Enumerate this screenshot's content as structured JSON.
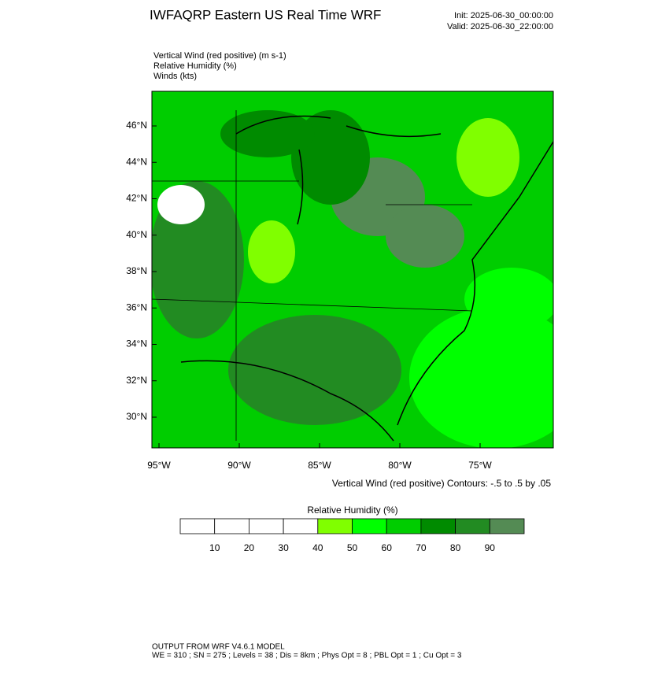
{
  "header": {
    "title": "IWFAQRP Eastern US Real Time WRF",
    "init": "Init: 2025-06-30_00:00:00",
    "valid": "Valid: 2025-06-30_22:00:00"
  },
  "fields": [
    "Vertical Wind (red positive)   (m s-1)",
    "Relative Humidity   (%)",
    "Winds   (kts)"
  ],
  "map": {
    "lat_labels": [
      "46°N",
      "44°N",
      "42°N",
      "40°N",
      "38°N",
      "36°N",
      "34°N",
      "32°N",
      "30°N"
    ],
    "lon_labels": [
      "95°W",
      "90°W",
      "85°W",
      "80°W",
      "75°W"
    ],
    "contour_note": "Vertical Wind (red positive) Contours: -.5 to .5 by .05"
  },
  "colorbar": {
    "title": "Relative Humidity  (%)",
    "labels": [
      "10",
      "20",
      "30",
      "40",
      "50",
      "60",
      "70",
      "80",
      "90"
    ],
    "colors": [
      "#ffffff",
      "#ffffff",
      "#ffffff",
      "#ffffff",
      "#80ff00",
      "#00ff00",
      "#00cd00",
      "#008b00",
      "#228b22",
      "#548b54"
    ]
  },
  "footer": {
    "line1": "OUTPUT FROM WRF V4.6.1 MODEL",
    "line2": "WE = 310 ; SN = 275 ; Levels = 38 ; Dis = 8km ; Phys Opt = 8 ; PBL Opt = 1 ; Cu Opt = 3"
  }
}
